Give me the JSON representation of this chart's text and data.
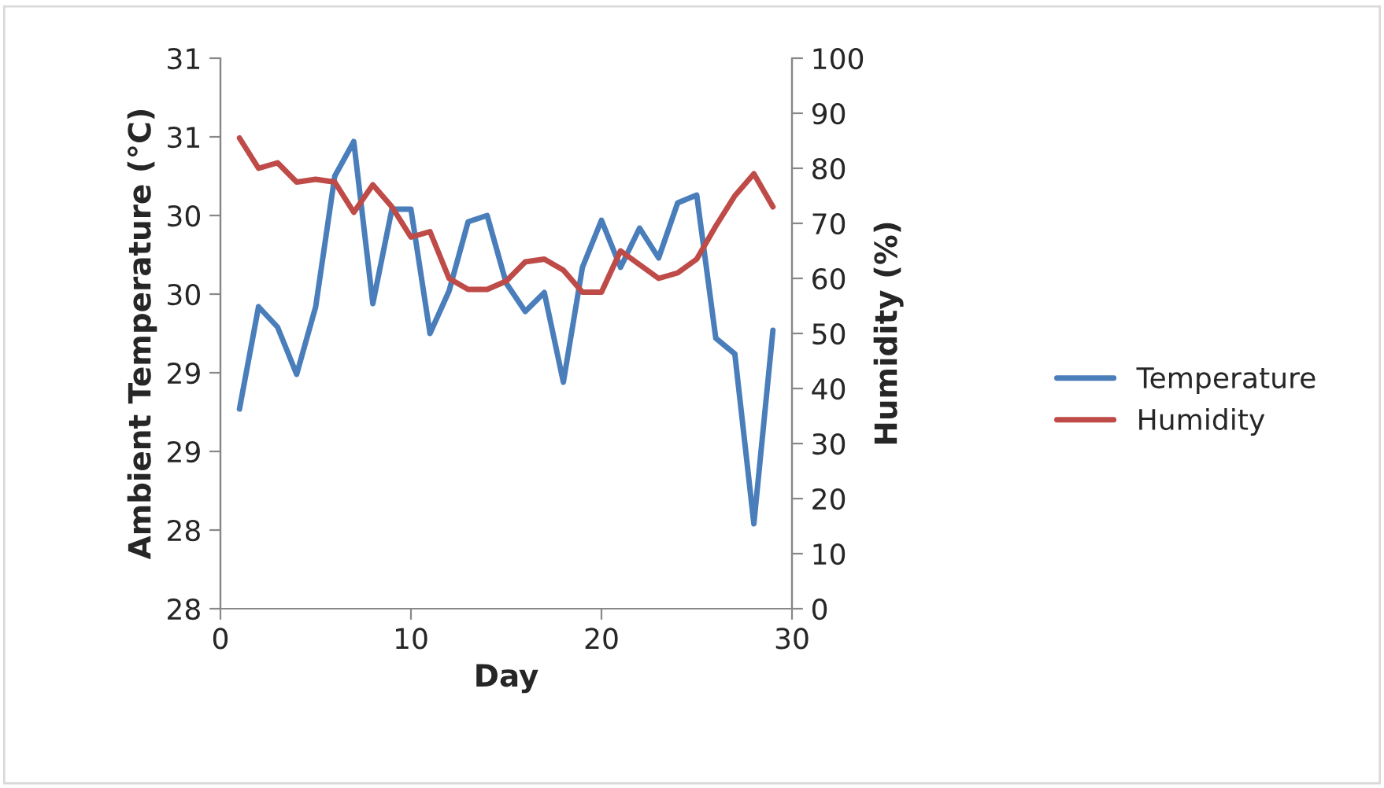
{
  "chart_data": {
    "type": "line",
    "xlabel": "Day",
    "ylabel": "Ambient Temperature (°C)",
    "y2label": "Humidity (%)",
    "x": [
      1,
      2,
      3,
      4,
      5,
      6,
      7,
      8,
      9,
      10,
      11,
      12,
      13,
      14,
      15,
      16,
      17,
      18,
      19,
      20,
      21,
      22,
      23,
      24,
      25,
      26,
      27,
      28,
      29
    ],
    "series": [
      {
        "name": "Temperature",
        "color": "#4a7ebb",
        "values": [
          28.77,
          29.42,
          29.29,
          28.99,
          29.42,
          30.25,
          30.47,
          29.44,
          30.04,
          30.04,
          29.25,
          29.52,
          29.96,
          30.0,
          29.57,
          29.39,
          29.51,
          28.94,
          29.67,
          29.97,
          29.67,
          29.92,
          29.73,
          30.08,
          30.13,
          29.22,
          29.12,
          28.04,
          29.27
        ]
      },
      {
        "name": "Humidity",
        "color": "#be4b48",
        "axis": "y2",
        "values": [
          85.5,
          80,
          81,
          77.5,
          78,
          77.5,
          72,
          77,
          73,
          67.5,
          68.5,
          60,
          58,
          58,
          59.5,
          63,
          63.5,
          61.5,
          57.5,
          57.5,
          65,
          62.5,
          60,
          61,
          63.5,
          69.5,
          75,
          79,
          73
        ]
      }
    ],
    "xlim": [
      0,
      30
    ],
    "xticks": [
      0,
      10,
      20,
      30
    ],
    "ylim": [
      27.5,
      31
    ],
    "yticks": [
      {
        "value": 27.5,
        "label": "28"
      },
      {
        "value": 28,
        "label": "28"
      },
      {
        "value": 28.5,
        "label": "29"
      },
      {
        "value": 29,
        "label": "29"
      },
      {
        "value": 29.5,
        "label": "30"
      },
      {
        "value": 30,
        "label": "30"
      },
      {
        "value": 30.5,
        "label": "31"
      },
      {
        "value": 31,
        "label": "31"
      }
    ],
    "y2lim": [
      0,
      100
    ],
    "y2ticks": [
      0,
      10,
      20,
      30,
      40,
      50,
      60,
      70,
      80,
      90,
      100
    ],
    "legend": "right",
    "grid": false,
    "marker": "none",
    "line_style": "solid"
  }
}
